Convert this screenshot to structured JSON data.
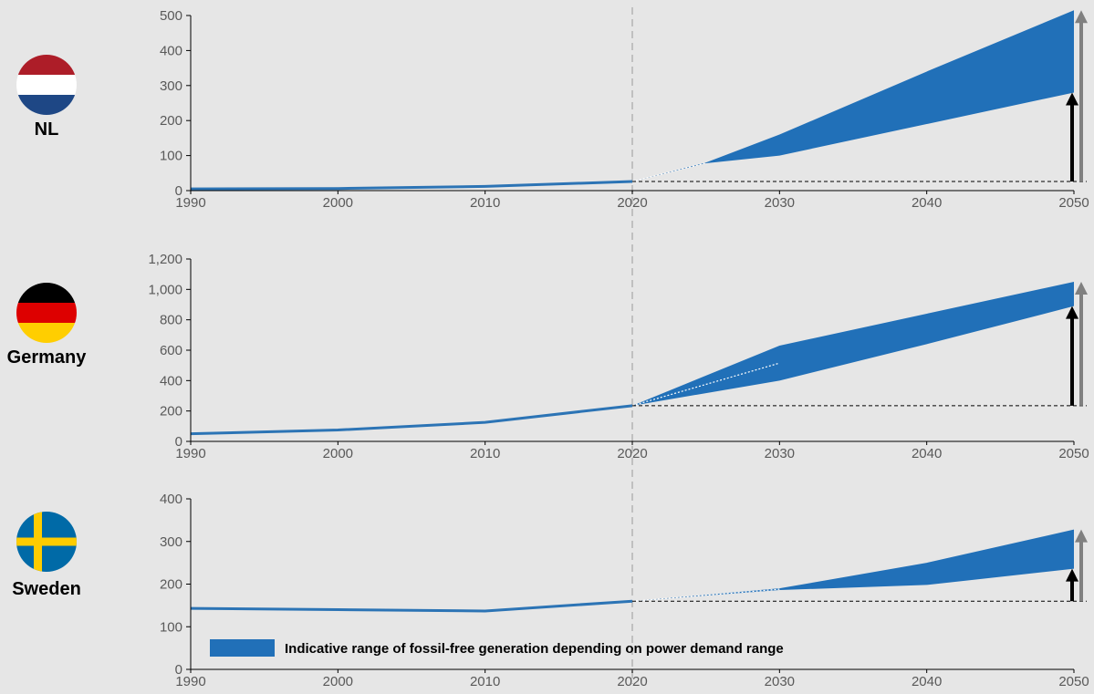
{
  "colors": {
    "background": "#e6e6e6",
    "line": "#2c74b5",
    "band": "#2170b8",
    "axis": "#000000",
    "tick_text": "#595959",
    "arrow_black": "#000000",
    "arrow_grey": "#808080",
    "divider": "#c0c0c0"
  },
  "legend": {
    "label": "Indicative range of fossil-free generation depending on power demand range",
    "placement": "bottom-left of last panel"
  },
  "chart_data": [
    {
      "type": "area",
      "country": "NL",
      "flag": "netherlands-flag",
      "x_ticks": [
        "1990",
        "2000",
        "2010",
        "2020",
        "2030",
        "2040",
        "2050"
      ],
      "xlim": [
        1990,
        2050
      ],
      "ylim": [
        0,
        500
      ],
      "y_ticks": [
        "0",
        "100",
        "200",
        "300",
        "400",
        "500"
      ],
      "y_tick_values": [
        0,
        100,
        200,
        300,
        400,
        500
      ],
      "grid": false,
      "history": {
        "x": [
          1990,
          2000,
          2010,
          2020
        ],
        "y": [
          5,
          6,
          12,
          26
        ]
      },
      "range_lower": {
        "x": [
          2020,
          2025,
          2030,
          2040,
          2050
        ],
        "y": [
          26,
          78,
          100,
          190,
          280
        ]
      },
      "range_upper": {
        "x": [
          2020,
          2025,
          2030,
          2040,
          2050
        ],
        "y": [
          26,
          80,
          160,
          340,
          515
        ]
      },
      "baseline_2020": 26,
      "arrow_black_to": 280,
      "arrow_grey_to": 515
    },
    {
      "type": "area",
      "country": "Germany",
      "flag": "germany-flag",
      "x_ticks": [
        "1990",
        "2000",
        "2010",
        "2020",
        "2030",
        "2040",
        "2050"
      ],
      "xlim": [
        1990,
        2050
      ],
      "ylim": [
        0,
        1200
      ],
      "y_ticks": [
        "0",
        "200",
        "400",
        "600",
        "800",
        "1,000",
        "1,200"
      ],
      "y_tick_values": [
        0,
        200,
        400,
        600,
        800,
        1000,
        1200
      ],
      "grid": false,
      "history": {
        "x": [
          1990,
          2000,
          2010,
          2020
        ],
        "y": [
          50,
          75,
          125,
          235
        ]
      },
      "range_lower": {
        "x": [
          2020,
          2030,
          2040,
          2050
        ],
        "y": [
          235,
          400,
          640,
          890
        ]
      },
      "range_upper": {
        "x": [
          2020,
          2030,
          2040,
          2050
        ],
        "y": [
          235,
          630,
          840,
          1050
        ]
      },
      "baseline_2020": 235,
      "arrow_black_to": 890,
      "arrow_grey_to": 1050
    },
    {
      "type": "area",
      "country": "Sweden",
      "flag": "sweden-flag",
      "x_ticks": [
        "1990",
        "2000",
        "2010",
        "2020",
        "2030",
        "2040",
        "2050"
      ],
      "xlim": [
        1990,
        2050
      ],
      "ylim": [
        0,
        400
      ],
      "y_ticks": [
        "0",
        "100",
        "200",
        "300",
        "400"
      ],
      "y_tick_values": [
        0,
        100,
        200,
        300,
        400
      ],
      "grid": false,
      "history": {
        "x": [
          1990,
          2000,
          2010,
          2020
        ],
        "y": [
          143,
          140,
          137,
          160
        ]
      },
      "range_lower": {
        "x": [
          2020,
          2030,
          2040,
          2050
        ],
        "y": [
          160,
          186,
          198,
          236
        ]
      },
      "range_upper": {
        "x": [
          2020,
          2030,
          2040,
          2050
        ],
        "y": [
          160,
          190,
          250,
          328
        ]
      },
      "baseline_2020": 160,
      "arrow_black_to": 236,
      "arrow_grey_to": 328
    }
  ]
}
